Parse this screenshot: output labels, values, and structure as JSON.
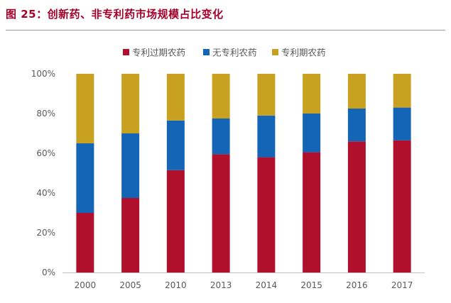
{
  "figure": {
    "title": "图 25：创新药、非专利药市场规模占比变化"
  },
  "chart_data": {
    "type": "bar",
    "stacked": true,
    "categories": [
      "2000",
      "2005",
      "2010",
      "2013",
      "2014",
      "2015",
      "2016",
      "2017"
    ],
    "series": [
      {
        "name": "专利过期农药",
        "color": "#b0102b",
        "values": [
          30,
          37.5,
          51.5,
          59.5,
          58,
          60.5,
          66,
          66.5
        ]
      },
      {
        "name": "无专利农药",
        "color": "#1565b6",
        "values": [
          35,
          32.5,
          25,
          18,
          21,
          19.5,
          16.5,
          16.5
        ]
      },
      {
        "name": "专利期农药",
        "color": "#c9a121",
        "values": [
          35,
          30,
          23.5,
          22.5,
          21,
          20,
          17.5,
          17
        ]
      }
    ],
    "y_ticks": [
      "0%",
      "20%",
      "40%",
      "60%",
      "80%",
      "100%"
    ],
    "ylim": [
      0,
      100
    ],
    "grid": false,
    "legend": "top-center"
  }
}
